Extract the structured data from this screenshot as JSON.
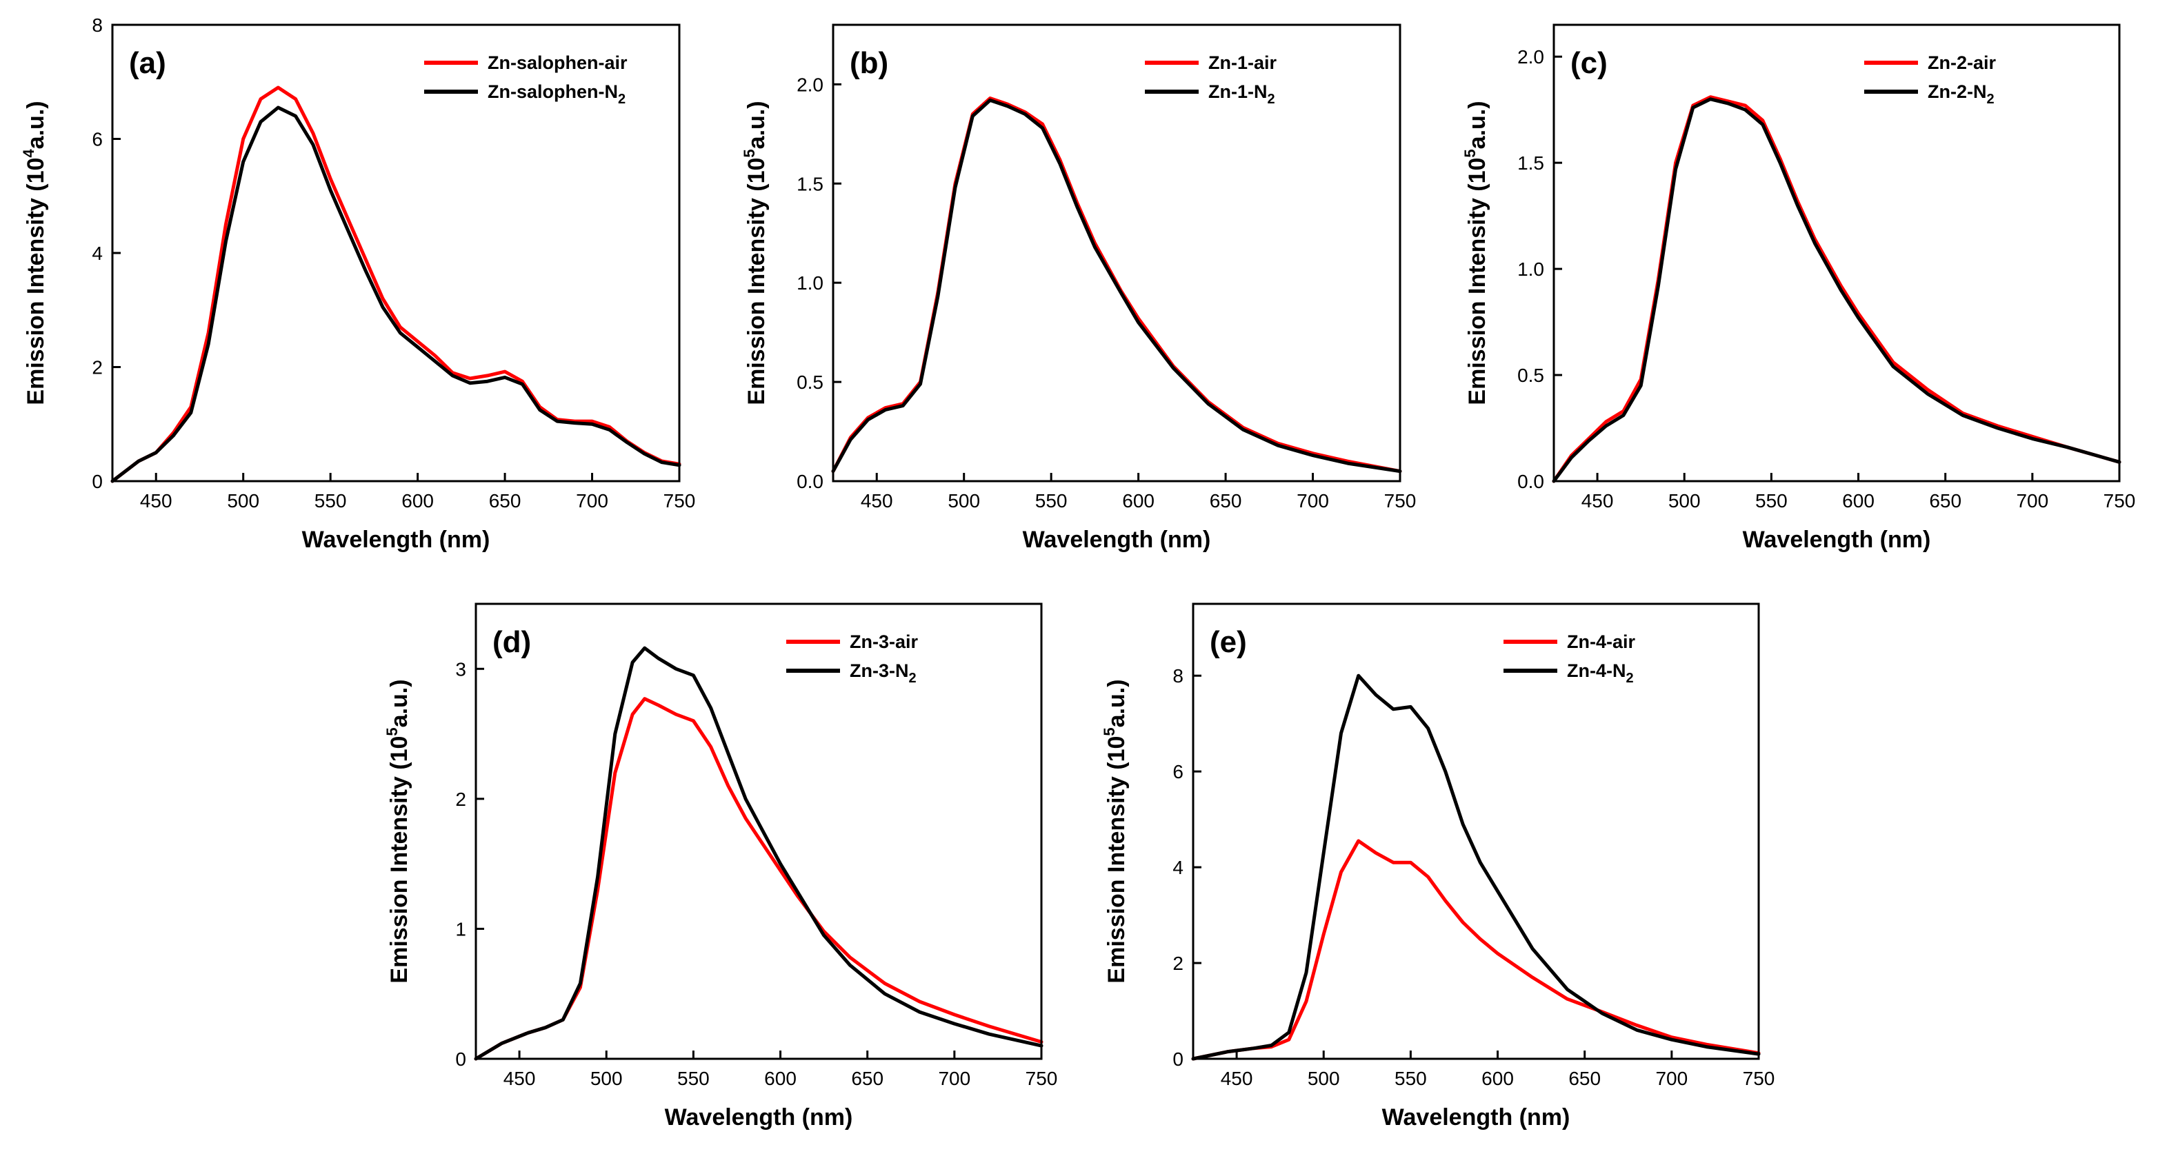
{
  "colors": {
    "air": "#ff0000",
    "n2": "#000000"
  },
  "chart_data": [
    {
      "type": "line",
      "panel_label": "(a)",
      "xlabel": "Wavelength (nm)",
      "ylabel": {
        "main": "Emission Intensity (10",
        "exp": "4",
        "tail": "a.u.)"
      },
      "xlim": [
        425,
        750
      ],
      "ylim": [
        0,
        8
      ],
      "xticks": [
        450,
        500,
        550,
        600,
        650,
        700,
        750
      ],
      "yticks": [
        0,
        2,
        4,
        6,
        8
      ],
      "series": [
        {
          "name": "Zn-salophen-air",
          "base": "Zn-salophen-air",
          "sub": "",
          "color": "#ff0000",
          "x": [
            425,
            440,
            450,
            460,
            470,
            480,
            490,
            500,
            510,
            520,
            530,
            540,
            550,
            560,
            570,
            580,
            590,
            600,
            610,
            620,
            630,
            640,
            650,
            660,
            670,
            680,
            690,
            700,
            710,
            720,
            730,
            740,
            750
          ],
          "y": [
            0.0,
            0.35,
            0.5,
            0.85,
            1.3,
            2.6,
            4.5,
            6.0,
            6.7,
            6.9,
            6.7,
            6.1,
            5.3,
            4.6,
            3.9,
            3.2,
            2.7,
            2.45,
            2.2,
            1.9,
            1.8,
            1.85,
            1.92,
            1.75,
            1.3,
            1.08,
            1.05,
            1.05,
            0.95,
            0.7,
            0.5,
            0.35,
            0.3
          ]
        },
        {
          "name": "Zn-salophen-N2",
          "base": "Zn-salophen-N",
          "sub": "2",
          "color": "#000000",
          "x": [
            425,
            440,
            450,
            460,
            470,
            480,
            490,
            500,
            510,
            520,
            530,
            540,
            550,
            560,
            570,
            580,
            590,
            600,
            610,
            620,
            630,
            640,
            650,
            660,
            670,
            680,
            690,
            700,
            710,
            720,
            730,
            740,
            750
          ],
          "y": [
            0.0,
            0.35,
            0.5,
            0.8,
            1.2,
            2.4,
            4.2,
            5.6,
            6.3,
            6.55,
            6.4,
            5.9,
            5.1,
            4.4,
            3.7,
            3.05,
            2.6,
            2.35,
            2.1,
            1.85,
            1.72,
            1.75,
            1.82,
            1.7,
            1.25,
            1.05,
            1.02,
            1.0,
            0.9,
            0.68,
            0.48,
            0.33,
            0.28
          ]
        }
      ]
    },
    {
      "type": "line",
      "panel_label": "(b)",
      "xlabel": "Wavelength (nm)",
      "ylabel": {
        "main": "Emission Intensity (10",
        "exp": "5",
        "tail": "a.u.)"
      },
      "xlim": [
        425,
        750
      ],
      "ylim": [
        0,
        2.3
      ],
      "xticks": [
        450,
        500,
        550,
        600,
        650,
        700,
        750
      ],
      "yticks": [
        0.0,
        0.5,
        1.0,
        1.5,
        2.0
      ],
      "ytick_labels": [
        "0.0",
        "0.5",
        "1.0",
        "1.5",
        "2.0"
      ],
      "series": [
        {
          "name": "Zn-1-air",
          "base": "Zn-1-air",
          "sub": "",
          "color": "#ff0000",
          "x": [
            425,
            435,
            445,
            455,
            465,
            475,
            485,
            495,
            505,
            515,
            525,
            535,
            545,
            555,
            565,
            575,
            590,
            600,
            620,
            640,
            660,
            680,
            700,
            720,
            750
          ],
          "y": [
            0.05,
            0.22,
            0.32,
            0.37,
            0.39,
            0.5,
            0.95,
            1.5,
            1.85,
            1.93,
            1.9,
            1.86,
            1.8,
            1.62,
            1.4,
            1.2,
            0.96,
            0.82,
            0.58,
            0.4,
            0.27,
            0.19,
            0.14,
            0.1,
            0.05
          ]
        },
        {
          "name": "Zn-1-N2",
          "base": "Zn-1-N",
          "sub": "2",
          "color": "#000000",
          "x": [
            425,
            435,
            445,
            455,
            465,
            475,
            485,
            495,
            505,
            515,
            525,
            535,
            545,
            555,
            565,
            575,
            590,
            600,
            620,
            640,
            660,
            680,
            700,
            720,
            750
          ],
          "y": [
            0.05,
            0.21,
            0.31,
            0.36,
            0.38,
            0.49,
            0.93,
            1.48,
            1.84,
            1.92,
            1.89,
            1.85,
            1.78,
            1.6,
            1.38,
            1.18,
            0.95,
            0.8,
            0.57,
            0.39,
            0.26,
            0.18,
            0.13,
            0.09,
            0.05
          ]
        }
      ]
    },
    {
      "type": "line",
      "panel_label": "(c)",
      "xlabel": "Wavelength (nm)",
      "ylabel": {
        "main": "Emission Intensity (10",
        "exp": "5",
        "tail": "a.u.)"
      },
      "xlim": [
        425,
        750
      ],
      "ylim": [
        0,
        2.15
      ],
      "xticks": [
        450,
        500,
        550,
        600,
        650,
        700,
        750
      ],
      "yticks": [
        0.0,
        0.5,
        1.0,
        1.5,
        2.0
      ],
      "ytick_labels": [
        "0.0",
        "0.5",
        "1.0",
        "1.5",
        "2.0"
      ],
      "series": [
        {
          "name": "Zn-2-air",
          "base": "Zn-2-air",
          "sub": "",
          "color": "#ff0000",
          "x": [
            425,
            435,
            445,
            455,
            465,
            475,
            485,
            495,
            505,
            515,
            525,
            535,
            545,
            555,
            565,
            575,
            590,
            600,
            620,
            640,
            660,
            680,
            700,
            720,
            750
          ],
          "y": [
            0.0,
            0.12,
            0.2,
            0.28,
            0.33,
            0.48,
            0.95,
            1.5,
            1.77,
            1.81,
            1.79,
            1.77,
            1.7,
            1.52,
            1.32,
            1.14,
            0.92,
            0.79,
            0.56,
            0.43,
            0.32,
            0.26,
            0.21,
            0.16,
            0.09
          ]
        },
        {
          "name": "Zn-2-N2",
          "base": "Zn-2-N",
          "sub": "2",
          "color": "#000000",
          "x": [
            425,
            435,
            445,
            455,
            465,
            475,
            485,
            495,
            505,
            515,
            525,
            535,
            545,
            555,
            565,
            575,
            590,
            600,
            620,
            640,
            660,
            680,
            700,
            720,
            750
          ],
          "y": [
            0.0,
            0.11,
            0.19,
            0.26,
            0.31,
            0.45,
            0.92,
            1.47,
            1.76,
            1.8,
            1.78,
            1.75,
            1.68,
            1.5,
            1.3,
            1.12,
            0.9,
            0.77,
            0.54,
            0.41,
            0.31,
            0.25,
            0.2,
            0.16,
            0.09
          ]
        }
      ]
    },
    {
      "type": "line",
      "panel_label": "(d)",
      "xlabel": "Wavelength (nm)",
      "ylabel": {
        "main": "Emission Intensity (10",
        "exp": "5",
        "tail": "a.u.)"
      },
      "xlim": [
        425,
        750
      ],
      "ylim": [
        0,
        3.5
      ],
      "xticks": [
        450,
        500,
        550,
        600,
        650,
        700,
        750
      ],
      "yticks": [
        0,
        1,
        2,
        3
      ],
      "series": [
        {
          "name": "Zn-3-air",
          "base": "Zn-3-air",
          "sub": "",
          "color": "#ff0000",
          "x": [
            425,
            440,
            455,
            465,
            475,
            485,
            495,
            505,
            515,
            522,
            530,
            540,
            550,
            560,
            570,
            580,
            590,
            600,
            610,
            625,
            640,
            660,
            680,
            700,
            720,
            750
          ],
          "y": [
            0.0,
            0.12,
            0.2,
            0.24,
            0.3,
            0.55,
            1.3,
            2.2,
            2.65,
            2.77,
            2.72,
            2.65,
            2.6,
            2.4,
            2.1,
            1.85,
            1.65,
            1.45,
            1.25,
            0.98,
            0.78,
            0.58,
            0.44,
            0.34,
            0.25,
            0.13
          ]
        },
        {
          "name": "Zn-3-N2",
          "base": "Zn-3-N",
          "sub": "2",
          "color": "#000000",
          "x": [
            425,
            440,
            455,
            465,
            475,
            485,
            495,
            505,
            515,
            522,
            530,
            540,
            550,
            560,
            570,
            580,
            590,
            600,
            610,
            625,
            640,
            660,
            680,
            700,
            720,
            750
          ],
          "y": [
            0.0,
            0.12,
            0.2,
            0.24,
            0.3,
            0.58,
            1.4,
            2.5,
            3.05,
            3.16,
            3.08,
            3.0,
            2.95,
            2.7,
            2.35,
            2.0,
            1.75,
            1.5,
            1.28,
            0.95,
            0.72,
            0.5,
            0.36,
            0.27,
            0.19,
            0.1
          ]
        }
      ]
    },
    {
      "type": "line",
      "panel_label": "(e)",
      "xlabel": "Wavelength (nm)",
      "ylabel": {
        "main": "Emission Intensity (10",
        "exp": "5",
        "tail": "a.u.)"
      },
      "xlim": [
        425,
        750
      ],
      "ylim": [
        0,
        9.5
      ],
      "xticks": [
        450,
        500,
        550,
        600,
        650,
        700,
        750
      ],
      "yticks": [
        0,
        2,
        4,
        6,
        8
      ],
      "series": [
        {
          "name": "Zn-4-air",
          "base": "Zn-4-air",
          "sub": "",
          "color": "#ff0000",
          "x": [
            425,
            445,
            460,
            470,
            480,
            490,
            500,
            510,
            520,
            530,
            540,
            550,
            560,
            570,
            580,
            590,
            600,
            620,
            640,
            660,
            680,
            700,
            720,
            750
          ],
          "y": [
            0.0,
            0.15,
            0.22,
            0.25,
            0.4,
            1.2,
            2.6,
            3.9,
            4.55,
            4.3,
            4.1,
            4.1,
            3.8,
            3.3,
            2.85,
            2.5,
            2.2,
            1.7,
            1.25,
            0.98,
            0.7,
            0.45,
            0.3,
            0.12
          ]
        },
        {
          "name": "Zn-4-N2",
          "base": "Zn-4-N",
          "sub": "2",
          "color": "#000000",
          "x": [
            425,
            445,
            460,
            470,
            480,
            490,
            500,
            510,
            520,
            530,
            540,
            550,
            560,
            570,
            580,
            590,
            600,
            620,
            640,
            660,
            680,
            700,
            720,
            750
          ],
          "y": [
            0.0,
            0.15,
            0.22,
            0.28,
            0.55,
            1.8,
            4.3,
            6.8,
            8.0,
            7.6,
            7.3,
            7.35,
            6.9,
            6.0,
            4.9,
            4.1,
            3.5,
            2.3,
            1.45,
            0.95,
            0.6,
            0.4,
            0.25,
            0.1
          ]
        }
      ]
    }
  ]
}
